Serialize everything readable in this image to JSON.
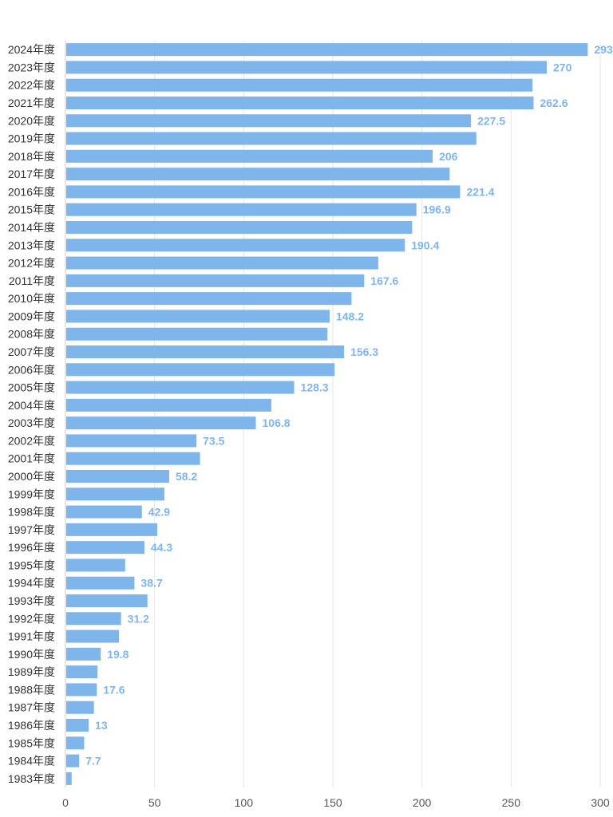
{
  "chart_data": {
    "type": "bar",
    "orientation": "horizontal",
    "categories": [
      "2024年度",
      "2023年度",
      "2022年度",
      "2021年度",
      "2020年度",
      "2019年度",
      "2018年度",
      "2017年度",
      "2016年度",
      "2015年度",
      "2014年度",
      "2013年度",
      "2012年度",
      "2011年度",
      "2010年度",
      "2009年度",
      "2008年度",
      "2007年度",
      "2006年度",
      "2005年度",
      "2004年度",
      "2003年度",
      "2002年度",
      "2001年度",
      "2000年度",
      "1999年度",
      "1998年度",
      "1997年度",
      "1996年度",
      "1995年度",
      "1994年度",
      "1993年度",
      "1992年度",
      "1991年度",
      "1990年度",
      "1989年度",
      "1988年度",
      "1987年度",
      "1986年度",
      "1985年度",
      "1984年度",
      "1983年度"
    ],
    "values": [
      293,
      270,
      262,
      262.6,
      227.5,
      230.5,
      206,
      215.5,
      221.4,
      196.9,
      194.5,
      190.4,
      175.5,
      167.6,
      160.5,
      148.2,
      147,
      156.3,
      151,
      128.3,
      115.5,
      106.8,
      73.5,
      75.5,
      58.2,
      55.5,
      42.9,
      51.5,
      44.3,
      33.5,
      38.7,
      46,
      31.2,
      30,
      19.8,
      18,
      17.6,
      16,
      13,
      10.5,
      7.7,
      3.5
    ],
    "data_labels": [
      "293",
      "270",
      "",
      "262.6",
      "227.5",
      "",
      "206",
      "",
      "221.4",
      "196.9",
      "",
      "190.4",
      "",
      "167.6",
      "",
      "148.2",
      "",
      "156.3",
      "",
      "128.3",
      "",
      "106.8",
      "73.5",
      "",
      "58.2",
      "",
      "42.9",
      "",
      "44.3",
      "",
      "38.7",
      "",
      "31.2",
      "",
      "19.8",
      "",
      "17.6",
      "",
      "13",
      "",
      "7.7",
      ""
    ],
    "title": "",
    "xlabel": "",
    "ylabel": "",
    "xlim": [
      0,
      300
    ],
    "x_ticks": [
      0,
      50,
      100,
      150,
      200,
      250,
      300
    ],
    "grid": true,
    "legend": "none",
    "colors": {
      "bar": "#7eb6ec",
      "label": "#7eb6ec",
      "grid": "#e6e6e6",
      "axis": "#cccccc"
    }
  }
}
